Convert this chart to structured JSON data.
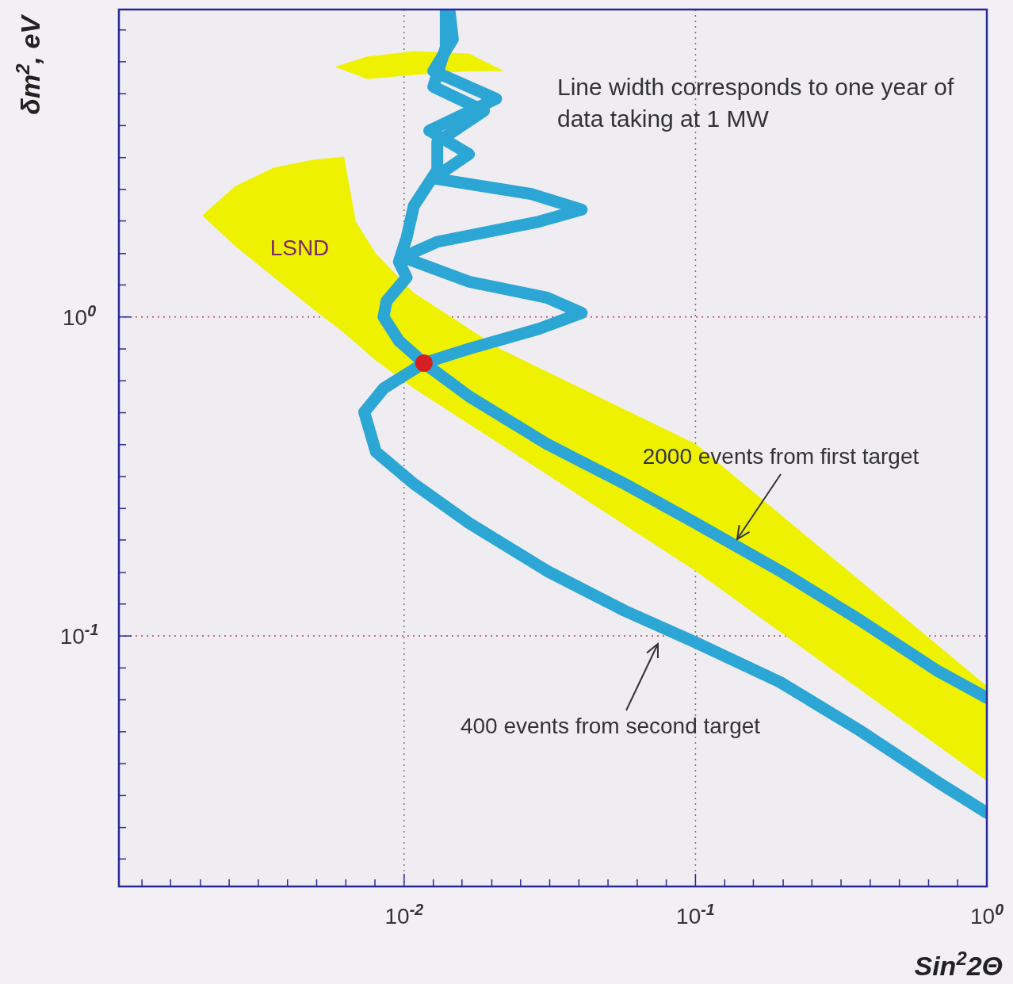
{
  "chart_data": {
    "type": "line",
    "xlabel": "Sin$^{2}$2Θ",
    "ylabel": "δm$^{2}$, eV",
    "log": "xy",
    "grid": true,
    "xlim": [
      0.00105,
      1
    ],
    "ylim": [
      0.0164,
      9.2
    ],
    "xticks": [
      {
        "value": 0.00126,
        "label": null
      },
      {
        "value": 0.00158,
        "label": null
      },
      {
        "value": 0.002,
        "label": null
      },
      {
        "value": 0.00251,
        "label": null
      },
      {
        "value": 0.00316,
        "label": null
      },
      {
        "value": 0.00398,
        "label": null
      },
      {
        "value": 0.00501,
        "label": null
      },
      {
        "value": 0.00631,
        "label": null
      },
      {
        "value": 0.00794,
        "label": null
      },
      {
        "value": 0.01,
        "label": "10$^{-2}$"
      },
      {
        "value": 0.0126,
        "label": null
      },
      {
        "value": 0.0158,
        "label": null
      },
      {
        "value": 0.02,
        "label": null
      },
      {
        "value": 0.0251,
        "label": null
      },
      {
        "value": 0.0316,
        "label": null
      },
      {
        "value": 0.0398,
        "label": null
      },
      {
        "value": 0.0501,
        "label": null
      },
      {
        "value": 0.0631,
        "label": null
      },
      {
        "value": 0.0794,
        "label": null
      },
      {
        "value": 0.1,
        "label": "10$^{-1}$"
      },
      {
        "value": 0.126,
        "label": null
      },
      {
        "value": 0.158,
        "label": null
      },
      {
        "value": 0.2,
        "label": null
      },
      {
        "value": 0.251,
        "label": null
      },
      {
        "value": 0.316,
        "label": null
      },
      {
        "value": 0.398,
        "label": null
      },
      {
        "value": 0.501,
        "label": null
      },
      {
        "value": 0.631,
        "label": null
      },
      {
        "value": 0.794,
        "label": null
      },
      {
        "value": 1,
        "label": "10$^{0}$"
      }
    ],
    "yticks": [
      {
        "value": 0.02,
        "label": null
      },
      {
        "value": 0.0251,
        "label": null
      },
      {
        "value": 0.0316,
        "label": null
      },
      {
        "value": 0.0398,
        "label": null
      },
      {
        "value": 0.0501,
        "label": null
      },
      {
        "value": 0.0631,
        "label": null
      },
      {
        "value": 0.0794,
        "label": null
      },
      {
        "value": 0.1,
        "label": "10$^{-1}$"
      },
      {
        "value": 0.126,
        "label": null
      },
      {
        "value": 0.158,
        "label": null
      },
      {
        "value": 0.2,
        "label": null
      },
      {
        "value": 0.251,
        "label": null
      },
      {
        "value": 0.316,
        "label": null
      },
      {
        "value": 0.398,
        "label": null
      },
      {
        "value": 0.501,
        "label": null
      },
      {
        "value": 0.631,
        "label": null
      },
      {
        "value": 0.794,
        "label": null
      },
      {
        "value": 1,
        "label": "10$^{0}$"
      },
      {
        "value": 1.26,
        "label": null
      },
      {
        "value": 1.58,
        "label": null
      },
      {
        "value": 2,
        "label": null
      },
      {
        "value": 2.51,
        "label": null
      },
      {
        "value": 3.16,
        "label": null
      },
      {
        "value": 3.98,
        "label": null
      },
      {
        "value": 5.01,
        "label": null
      },
      {
        "value": 6.31,
        "label": null
      },
      {
        "value": 7.94,
        "label": null
      }
    ],
    "annotations": [
      "Line width corresponds to one year of data taking at 1 MW"
    ],
    "series": [
      {
        "type": "area",
        "name": "LSND",
        "color": "#eef200",
        "x": [
          0.00203,
          0.00263,
          0.00358,
          0.00486,
          0.00622,
          0.00683,
          0.008,
          0.0108,
          0.0213,
          0.1,
          1.0,
          1.0,
          0.1,
          0.0213,
          0.0108,
          0.008,
          0.00683,
          0.00622,
          0.00486,
          0.00358,
          0.00263
        ],
        "values": [
          2.08,
          2.57,
          2.94,
          3.11,
          3.18,
          1.99,
          1.58,
          1.19,
          0.795,
          0.4,
          0.0697,
          0.0351,
          0.16,
          0.4,
          0.597,
          0.73,
          0.828,
          0.892,
          1.06,
          1.33,
          1.67
        ]
      },
      {
        "type": "area",
        "color": "#eef200",
        "x": [
          0.00578,
          0.00749,
          0.0108,
          0.0167,
          0.022,
          0.0167,
          0.0108,
          0.00749
        ],
        "values": [
          6.08,
          6.55,
          6.81,
          6.7,
          5.9,
          5.9,
          5.74,
          5.57
        ]
      },
      {
        "name": "2000 events from first target",
        "color": "#2ca6d4",
        "x": [
          0.0139,
          0.0139,
          0.0126,
          0.0188,
          0.013,
          0.013,
          0.0108,
          0.0102,
          0.0096,
          0.0102,
          0.0087,
          0.0085,
          0.0096,
          0.0117,
          0.0167,
          0.0309,
          0.0571,
          0.1,
          0.195,
          0.362,
          0.67,
          1.0
        ],
        "values": [
          9.2,
          7.01,
          5.27,
          4.43,
          3.53,
          2.89,
          2.23,
          1.77,
          1.49,
          1.33,
          1.12,
          1.0,
          0.842,
          0.717,
          0.564,
          0.4,
          0.3,
          0.226,
          0.16,
          0.113,
          0.0782,
          0.064
        ]
      },
      {
        "name": "400 events from second target",
        "color": "#2ca6d4",
        "x": [
          0.0143,
          0.0147,
          0.0126,
          0.0207,
          0.0122,
          0.0167,
          0.0126,
          0.0273,
          0.0407,
          0.029,
          0.013,
          0.0099,
          0.0167,
          0.0309,
          0.0407,
          0.029,
          0.0167,
          0.0117,
          0.0085,
          0.0073,
          0.008,
          0.0108,
          0.0167,
          0.0309,
          0.0571,
          0.1,
          0.195,
          0.362,
          0.67,
          1.0
        ],
        "values": [
          9.2,
          7.43,
          5.9,
          4.83,
          3.84,
          3.24,
          2.72,
          2.43,
          2.17,
          1.99,
          1.72,
          1.54,
          1.29,
          1.15,
          1.03,
          0.918,
          0.795,
          0.717,
          0.597,
          0.503,
          0.378,
          0.3,
          0.226,
          0.16,
          0.12,
          0.0955,
          0.0717,
          0.0509,
          0.0351,
          0.0279
        ]
      },
      {
        "type": "scatter",
        "color": "#d42020",
        "marker": "circle",
        "x": [
          0.0117
        ],
        "values": [
          0.717
        ]
      }
    ]
  }
}
